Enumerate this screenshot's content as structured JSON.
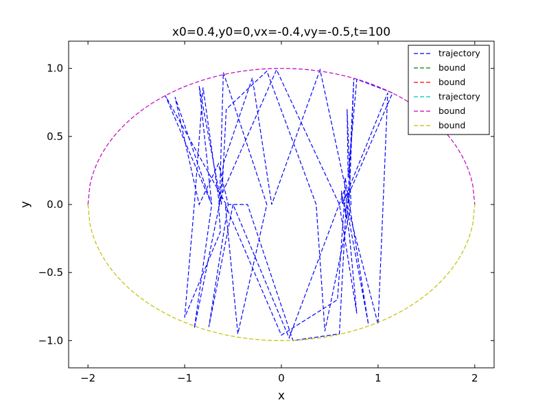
{
  "chart_data": {
    "type": "line",
    "title": "x0=0.4,y0=0,vx=-0.4,vy=-0.5,t=100",
    "xlabel": "x",
    "ylabel": "y",
    "xlim": [
      -2.2,
      2.2
    ],
    "ylim": [
      -1.2,
      1.2
    ],
    "xticks": [
      -2,
      -1,
      0,
      1,
      2
    ],
    "xtick_labels": [
      "−2",
      "−1",
      "0",
      "1",
      "2"
    ],
    "yticks": [
      -1.0,
      -0.5,
      0.0,
      0.5,
      1.0
    ],
    "ytick_labels": [
      "−1.0",
      "−0.5",
      "0.0",
      "0.5",
      "1.0"
    ],
    "grid": false,
    "legend_position": "top-right",
    "series": [
      {
        "name": "trajectory",
        "color": "#0000ff",
        "style": "dashed",
        "x": [
          -0.57,
          -1.2,
          -0.72,
          -0.85,
          -0.62,
          -0.57,
          -0.15,
          0.36,
          0.45,
          0.72,
          0.68,
          0.69,
          0.78,
          1.15,
          0.65,
          0.58,
          0.0,
          -0.58,
          -0.45,
          -0.15,
          -0.6,
          -0.64,
          -0.81,
          -0.9,
          -1.0,
          -0.63,
          -0.65,
          -0.6,
          -0.05,
          0.6,
          0.78,
          0.7,
          0.62,
          0.63,
          1.1,
          1.0,
          0.68,
          0.65,
          0.08,
          -0.5,
          -0.75,
          -0.55,
          -0.65,
          -0.85,
          -1.1,
          -0.72,
          -0.9,
          -0.64,
          -0.6,
          -0.3,
          -0.1,
          0.4,
          0.7,
          0.75,
          0.68,
          0.65,
          0.66,
          0.9,
          0.67,
          0.6,
          0.12,
          -0.35,
          -0.55
        ],
        "y": [
          0.0,
          0.8,
          0.0,
          0.87,
          0.0,
          0.7,
          0.98,
          0.0,
          -0.93,
          0.0,
          0.7,
          0.2,
          0.92,
          0.82,
          0.0,
          -0.7,
          -0.96,
          0.0,
          -0.95,
          0.0,
          0.97,
          0.0,
          0.86,
          0.0,
          -0.83,
          -0.2,
          0.0,
          0.1,
          0.99,
          0.0,
          -0.8,
          -0.2,
          0.1,
          0.0,
          0.82,
          -0.88,
          0.0,
          0.1,
          -0.98,
          0.0,
          -0.9,
          0.0,
          0.3,
          0.0,
          0.79,
          0.0,
          -0.91,
          0.0,
          0.3,
          0.93,
          0.0,
          0.99,
          0.0,
          0.93,
          -0.1,
          0.0,
          0.2,
          -0.88,
          0.0,
          -0.95,
          -1.0,
          0.0,
          0.0
        ]
      },
      {
        "name": "bound",
        "color": "#008000",
        "style": "dashed",
        "x": [],
        "y": []
      },
      {
        "name": "bound",
        "color": "#ff0000",
        "style": "dashed",
        "x": [],
        "y": []
      },
      {
        "name": "trajectory",
        "color": "#00bfbf",
        "style": "dashed",
        "x": [],
        "y": []
      },
      {
        "name": "bound",
        "color": "#bf00bf",
        "style": "dashed",
        "curve": "upper-ellipse",
        "a": 2.0,
        "b": 1.0
      },
      {
        "name": "bound",
        "color": "#bfbf00",
        "style": "dashed",
        "curve": "lower-ellipse",
        "a": 2.0,
        "b": 1.0
      }
    ]
  }
}
